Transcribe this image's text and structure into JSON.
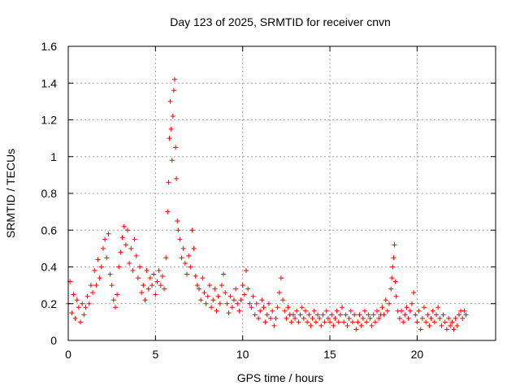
{
  "chart_data": {
    "type": "scatter",
    "title": "Day 123 of 2025, SRMTID for receiver cnvn",
    "xlabel": "GPS time / hours",
    "ylabel": "SRMTID / TECUs",
    "xlim": [
      0,
      24.5
    ],
    "ylim": [
      0,
      1.6
    ],
    "xticks": [
      0,
      5,
      10,
      15,
      20
    ],
    "yticks": [
      0,
      0.2,
      0.4,
      0.6,
      0.8,
      1,
      1.2,
      1.4,
      1.6
    ],
    "xtick_labels": [
      "0",
      "5",
      "10",
      "15",
      "20"
    ],
    "ytick_labels": [
      "0",
      "0.2",
      "0.4",
      "0.6",
      "0.8",
      "1",
      "1.2",
      "1.4",
      "1.6"
    ],
    "grid": true,
    "marker": "plus",
    "color": "#ff0000",
    "series": [
      {
        "name": "SRMTID",
        "points": [
          [
            0.0,
            0.2
          ],
          [
            0.1,
            0.32
          ],
          [
            0.2,
            0.15
          ],
          [
            0.3,
            0.25
          ],
          [
            0.4,
            0.12
          ],
          [
            0.5,
            0.22
          ],
          [
            0.6,
            0.18
          ],
          [
            0.7,
            0.1
          ],
          [
            0.8,
            0.2
          ],
          [
            0.9,
            0.14
          ],
          [
            1.0,
            0.18
          ],
          [
            1.1,
            0.24
          ],
          [
            1.2,
            0.2
          ],
          [
            1.3,
            0.3
          ],
          [
            1.4,
            0.26
          ],
          [
            1.5,
            0.38
          ],
          [
            1.6,
            0.3
          ],
          [
            1.7,
            0.44
          ],
          [
            1.8,
            0.34
          ],
          [
            1.9,
            0.4
          ],
          [
            2.0,
            0.5
          ],
          [
            2.1,
            0.55
          ],
          [
            2.2,
            0.45
          ],
          [
            2.3,
            0.58
          ],
          [
            2.4,
            0.36
          ],
          [
            2.5,
            0.3
          ],
          [
            2.6,
            0.22
          ],
          [
            2.7,
            0.18
          ],
          [
            2.8,
            0.25
          ],
          [
            2.9,
            0.4
          ],
          [
            3.0,
            0.48
          ],
          [
            3.1,
            0.56
          ],
          [
            3.2,
            0.62
          ],
          [
            3.3,
            0.52
          ],
          [
            3.4,
            0.6
          ],
          [
            3.5,
            0.42
          ],
          [
            3.6,
            0.5
          ],
          [
            3.7,
            0.38
          ],
          [
            3.8,
            0.55
          ],
          [
            3.9,
            0.46
          ],
          [
            4.0,
            0.34
          ],
          [
            4.1,
            0.4
          ],
          [
            4.2,
            0.26
          ],
          [
            4.3,
            0.3
          ],
          [
            4.4,
            0.22
          ],
          [
            4.5,
            0.38
          ],
          [
            4.6,
            0.28
          ],
          [
            4.7,
            0.34
          ],
          [
            4.8,
            0.3
          ],
          [
            4.9,
            0.36
          ],
          [
            5.0,
            0.25
          ],
          [
            5.1,
            0.32
          ],
          [
            5.2,
            0.38
          ],
          [
            5.3,
            0.3
          ],
          [
            5.4,
            0.35
          ],
          [
            5.5,
            0.28
          ],
          [
            5.6,
            0.45
          ],
          [
            5.7,
            0.7
          ],
          [
            5.75,
            0.86
          ],
          [
            5.8,
            1.1
          ],
          [
            5.85,
            1.3
          ],
          [
            5.9,
            1.15
          ],
          [
            5.95,
            0.98
          ],
          [
            6.0,
            1.22
          ],
          [
            6.05,
            1.36
          ],
          [
            6.1,
            1.42
          ],
          [
            6.15,
            1.05
          ],
          [
            6.2,
            0.88
          ],
          [
            6.25,
            0.65
          ],
          [
            6.3,
            0.6
          ],
          [
            6.4,
            0.55
          ],
          [
            6.5,
            0.45
          ],
          [
            6.6,
            0.5
          ],
          [
            6.7,
            0.42
          ],
          [
            6.8,
            0.36
          ],
          [
            6.9,
            0.46
          ],
          [
            7.0,
            0.4
          ],
          [
            7.1,
            0.6
          ],
          [
            7.2,
            0.5
          ],
          [
            7.3,
            0.35
          ],
          [
            7.4,
            0.3
          ],
          [
            7.5,
            0.28
          ],
          [
            7.6,
            0.22
          ],
          [
            7.7,
            0.34
          ],
          [
            7.8,
            0.26
          ],
          [
            7.9,
            0.2
          ],
          [
            8.0,
            0.24
          ],
          [
            8.1,
            0.3
          ],
          [
            8.2,
            0.18
          ],
          [
            8.3,
            0.22
          ],
          [
            8.4,
            0.28
          ],
          [
            8.5,
            0.16
          ],
          [
            8.6,
            0.24
          ],
          [
            8.7,
            0.2
          ],
          [
            8.8,
            0.3
          ],
          [
            8.9,
            0.36
          ],
          [
            9.0,
            0.26
          ],
          [
            9.1,
            0.2
          ],
          [
            9.2,
            0.15
          ],
          [
            9.3,
            0.24
          ],
          [
            9.4,
            0.18
          ],
          [
            9.5,
            0.22
          ],
          [
            9.6,
            0.28
          ],
          [
            9.7,
            0.2
          ],
          [
            9.8,
            0.16
          ],
          [
            9.9,
            0.22
          ],
          [
            10.0,
            0.3
          ],
          [
            10.1,
            0.25
          ],
          [
            10.2,
            0.38
          ],
          [
            10.3,
            0.28
          ],
          [
            10.4,
            0.2
          ],
          [
            10.5,
            0.18
          ],
          [
            10.6,
            0.24
          ],
          [
            10.7,
            0.14
          ],
          [
            10.8,
            0.2
          ],
          [
            10.9,
            0.12
          ],
          [
            11.0,
            0.16
          ],
          [
            11.1,
            0.22
          ],
          [
            11.2,
            0.18
          ],
          [
            11.3,
            0.1
          ],
          [
            11.4,
            0.14
          ],
          [
            11.5,
            0.2
          ],
          [
            11.6,
            0.12
          ],
          [
            11.7,
            0.16
          ],
          [
            11.8,
            0.08
          ],
          [
            11.9,
            0.12
          ],
          [
            12.0,
            0.18
          ],
          [
            12.1,
            0.26
          ],
          [
            12.2,
            0.34
          ],
          [
            12.3,
            0.22
          ],
          [
            12.4,
            0.16
          ],
          [
            12.5,
            0.12
          ],
          [
            12.6,
            0.18
          ],
          [
            12.7,
            0.14
          ],
          [
            12.8,
            0.1
          ],
          [
            12.9,
            0.14
          ],
          [
            13.0,
            0.12
          ],
          [
            13.1,
            0.16
          ],
          [
            13.2,
            0.1
          ],
          [
            13.3,
            0.14
          ],
          [
            13.4,
            0.18
          ],
          [
            13.5,
            0.12
          ],
          [
            13.6,
            0.16
          ],
          [
            13.7,
            0.1
          ],
          [
            13.8,
            0.14
          ],
          [
            13.9,
            0.08
          ],
          [
            14.0,
            0.12
          ],
          [
            14.1,
            0.16
          ],
          [
            14.2,
            0.1
          ],
          [
            14.3,
            0.14
          ],
          [
            14.4,
            0.12
          ],
          [
            14.5,
            0.08
          ],
          [
            14.6,
            0.14
          ],
          [
            14.7,
            0.1
          ],
          [
            14.8,
            0.16
          ],
          [
            14.9,
            0.12
          ],
          [
            15.0,
            0.1
          ],
          [
            15.1,
            0.14
          ],
          [
            15.2,
            0.08
          ],
          [
            15.3,
            0.12
          ],
          [
            15.4,
            0.16
          ],
          [
            15.5,
            0.1
          ],
          [
            15.6,
            0.14
          ],
          [
            15.7,
            0.18
          ],
          [
            15.8,
            0.1
          ],
          [
            15.9,
            0.14
          ],
          [
            16.0,
            0.08
          ],
          [
            16.1,
            0.12
          ],
          [
            16.2,
            0.16
          ],
          [
            16.3,
            0.1
          ],
          [
            16.4,
            0.14
          ],
          [
            16.5,
            0.06
          ],
          [
            16.6,
            0.1
          ],
          [
            16.7,
            0.14
          ],
          [
            16.8,
            0.08
          ],
          [
            16.9,
            0.12
          ],
          [
            17.0,
            0.16
          ],
          [
            17.1,
            0.1
          ],
          [
            17.2,
            0.14
          ],
          [
            17.3,
            0.12
          ],
          [
            17.4,
            0.08
          ],
          [
            17.5,
            0.14
          ],
          [
            17.6,
            0.1
          ],
          [
            17.7,
            0.16
          ],
          [
            17.8,
            0.12
          ],
          [
            17.9,
            0.14
          ],
          [
            18.0,
            0.18
          ],
          [
            18.1,
            0.14
          ],
          [
            18.2,
            0.22
          ],
          [
            18.3,
            0.16
          ],
          [
            18.4,
            0.2
          ],
          [
            18.5,
            0.28
          ],
          [
            18.55,
            0.34
          ],
          [
            18.6,
            0.4
          ],
          [
            18.65,
            0.45
          ],
          [
            18.7,
            0.52
          ],
          [
            18.75,
            0.32
          ],
          [
            18.8,
            0.24
          ],
          [
            18.9,
            0.16
          ],
          [
            19.0,
            0.12
          ],
          [
            19.1,
            0.16
          ],
          [
            19.2,
            0.1
          ],
          [
            19.3,
            0.14
          ],
          [
            19.4,
            0.18
          ],
          [
            19.5,
            0.12
          ],
          [
            19.6,
            0.16
          ],
          [
            19.7,
            0.2
          ],
          [
            19.8,
            0.26
          ],
          [
            19.9,
            0.14
          ],
          [
            20.0,
            0.1
          ],
          [
            20.1,
            0.16
          ],
          [
            20.2,
            0.06
          ],
          [
            20.3,
            0.12
          ],
          [
            20.4,
            0.18
          ],
          [
            20.5,
            0.1
          ],
          [
            20.6,
            0.14
          ],
          [
            20.7,
            0.08
          ],
          [
            20.8,
            0.12
          ],
          [
            20.9,
            0.16
          ],
          [
            21.0,
            0.1
          ],
          [
            21.1,
            0.14
          ],
          [
            21.2,
            0.18
          ],
          [
            21.3,
            0.12
          ],
          [
            21.4,
            0.08
          ],
          [
            21.5,
            0.14
          ],
          [
            21.6,
            0.1
          ],
          [
            21.7,
            0.06
          ],
          [
            21.8,
            0.12
          ],
          [
            21.9,
            0.08
          ],
          [
            22.0,
            0.1
          ],
          [
            22.1,
            0.06
          ],
          [
            22.2,
            0.12
          ],
          [
            22.3,
            0.08
          ],
          [
            22.4,
            0.14
          ],
          [
            22.5,
            0.16
          ],
          [
            22.6,
            0.12
          ],
          [
            22.7,
            0.16
          ],
          [
            22.8,
            0.14
          ]
        ]
      }
    ]
  }
}
